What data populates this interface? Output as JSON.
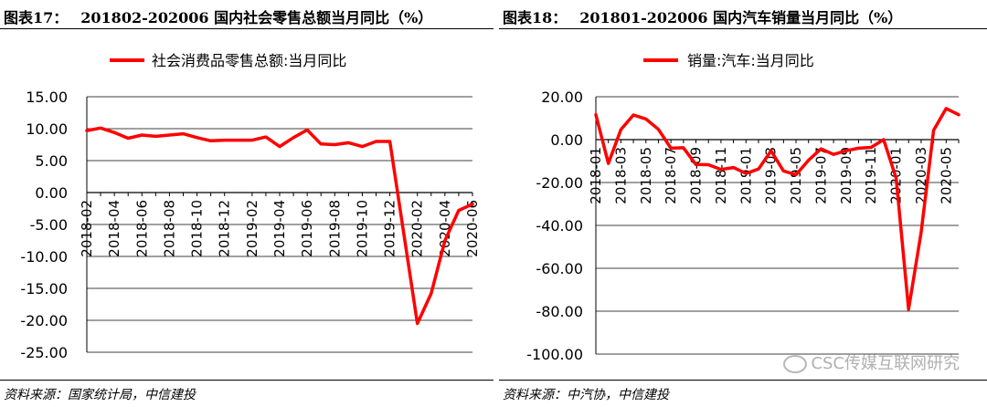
{
  "left": {
    "title_label": "图表17：",
    "title_text": "201802-202006 国内社会零售总额当月同比（%）",
    "source": "资料来源：国家统计局，中信建投"
  },
  "right": {
    "title_label": "图表18：",
    "title_text": "201801-202006 国内汽车销量当月同比（%）",
    "source": "资料来源：中汽协，中信建投"
  },
  "watermark": "CSC传媒互联网研究",
  "chart_data": [
    {
      "type": "line",
      "legend": "top-center",
      "grid": true,
      "color": "#ff0000",
      "ylim": [
        -25,
        15
      ],
      "yticks": [
        "15.00",
        "10.00",
        "5.00",
        "0.00",
        "-5.00",
        "-10.00",
        "-15.00",
        "-20.00",
        "-25.00"
      ],
      "x_tick_labels": [
        "2018-02",
        "2018-04",
        "2018-06",
        "2018-08",
        "2018-10",
        "2018-12",
        "2019-02",
        "2019-04",
        "2019-06",
        "2019-08",
        "2019-10",
        "2019-12",
        "2020-02",
        "2020-04",
        "2020-06"
      ],
      "series": [
        {
          "name": "社会消费品零售总额:当月同比",
          "x": [
            "2018-02",
            "2018-03",
            "2018-04",
            "2018-05",
            "2018-06",
            "2018-07",
            "2018-08",
            "2018-09",
            "2018-10",
            "2018-11",
            "2018-12",
            "2019-02",
            "2019-03",
            "2019-04",
            "2019-05",
            "2019-06",
            "2019-07",
            "2019-08",
            "2019-09",
            "2019-10",
            "2019-11",
            "2019-12",
            "2020-02",
            "2020-03",
            "2020-04",
            "2020-05",
            "2020-06"
          ],
          "values": [
            9.7,
            10.1,
            9.4,
            8.5,
            9.0,
            8.8,
            9.0,
            9.2,
            8.6,
            8.1,
            8.2,
            8.2,
            8.7,
            7.2,
            8.6,
            9.8,
            7.6,
            7.5,
            7.8,
            7.2,
            8.0,
            8.0,
            -20.5,
            -15.8,
            -7.5,
            -2.8,
            -1.8
          ]
        }
      ]
    },
    {
      "type": "line",
      "legend": "top-center",
      "grid": true,
      "color": "#ff0000",
      "ylim": [
        -100,
        20
      ],
      "yticks": [
        "20.00",
        "0.00",
        "-20.00",
        "-40.00",
        "-60.00",
        "-80.00",
        "-100.00"
      ],
      "x_tick_labels": [
        "2018-01",
        "2018-03",
        "2018-05",
        "2018-07",
        "2018-09",
        "2018-11",
        "2019-01",
        "2019-03",
        "2019-05",
        "2019-07",
        "2019-09",
        "2019-11",
        "2020-01",
        "2020-03",
        "2020-05"
      ],
      "series": [
        {
          "name": "销量:汽车:当月同比",
          "x": [
            "2018-01",
            "2018-02",
            "2018-03",
            "2018-04",
            "2018-05",
            "2018-06",
            "2018-07",
            "2018-08",
            "2018-09",
            "2018-10",
            "2018-11",
            "2018-12",
            "2019-01",
            "2019-02",
            "2019-03",
            "2019-04",
            "2019-05",
            "2019-06",
            "2019-07",
            "2019-08",
            "2019-09",
            "2019-10",
            "2019-11",
            "2019-12",
            "2020-01",
            "2020-02",
            "2020-03",
            "2020-04",
            "2020-05",
            "2020-06"
          ],
          "values": [
            11.6,
            -11.1,
            4.7,
            11.5,
            9.6,
            4.8,
            -4.0,
            -3.8,
            -11.6,
            -11.7,
            -13.9,
            -13.0,
            -15.8,
            -13.7,
            -5.2,
            -14.6,
            -16.4,
            -9.6,
            -4.3,
            -6.9,
            -5.2,
            -4.0,
            -3.6,
            0.0,
            -18.0,
            -79.1,
            -43.3,
            4.4,
            14.5,
            11.6
          ]
        }
      ]
    }
  ]
}
